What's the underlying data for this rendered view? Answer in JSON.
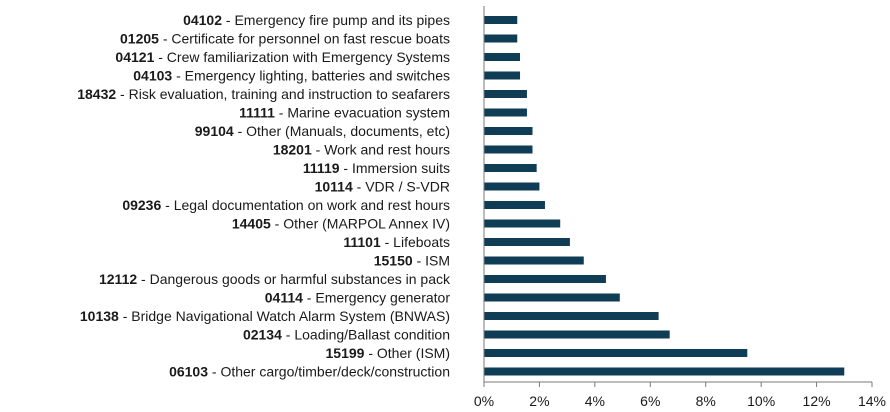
{
  "chart_data": {
    "type": "bar",
    "orientation": "horizontal",
    "categories": [
      {
        "code": "04102",
        "name": " - Emergency fire pump and its pipes"
      },
      {
        "code": "01205",
        "name": " - Certificate for personnel on fast rescue boats"
      },
      {
        "code": "04121",
        "name": " - Crew familiarization with Emergency Systems"
      },
      {
        "code": "04103",
        "name": " - Emergency lighting, batteries and switches"
      },
      {
        "code": "18432",
        "name": " - Risk evaluation, training and instruction to seafarers"
      },
      {
        "code": "11111",
        "name": " - Marine evacuation system"
      },
      {
        "code": "99104",
        "name": " - Other (Manuals, documents, etc)"
      },
      {
        "code": "18201",
        "name": " - Work and rest hours"
      },
      {
        "code": "11119",
        "name": " - Immersion suits"
      },
      {
        "code": "10114",
        "name": " - VDR / S-VDR"
      },
      {
        "code": "09236",
        "name": " - Legal documentation on work and rest hours"
      },
      {
        "code": "14405",
        "name": " - Other (MARPOL Annex IV)"
      },
      {
        "code": "11101",
        "name": " - Lifeboats"
      },
      {
        "code": "15150",
        "name": " - ISM"
      },
      {
        "code": "12112",
        "name": " - Dangerous goods or harmful substances in pack"
      },
      {
        "code": "04114",
        "name": " - Emergency generator"
      },
      {
        "code": "10138",
        "name": " - Bridge Navigational Watch Alarm System (BNWAS)"
      },
      {
        "code": "02134",
        "name": " - Loading/Ballast condition"
      },
      {
        "code": "15199",
        "name": " - Other (ISM)"
      },
      {
        "code": "06103",
        "name": " - Other cargo/timber/deck/construction"
      }
    ],
    "values": [
      1.2,
      1.2,
      1.3,
      1.3,
      1.55,
      1.55,
      1.75,
      1.75,
      1.9,
      2.0,
      2.2,
      2.75,
      3.1,
      3.6,
      4.4,
      4.9,
      6.3,
      6.7,
      9.5,
      13.0
    ],
    "xlim": [
      0,
      14
    ],
    "xticks": [
      0,
      2,
      4,
      6,
      8,
      10,
      12,
      14
    ],
    "xtick_suffix": "%",
    "title": "",
    "xlabel": "",
    "ylabel": "",
    "grid": false,
    "legend": "none",
    "colors": {
      "bar": "#0f3d55",
      "axis": "#7a7a7a",
      "text": "#1a1a1a"
    }
  }
}
